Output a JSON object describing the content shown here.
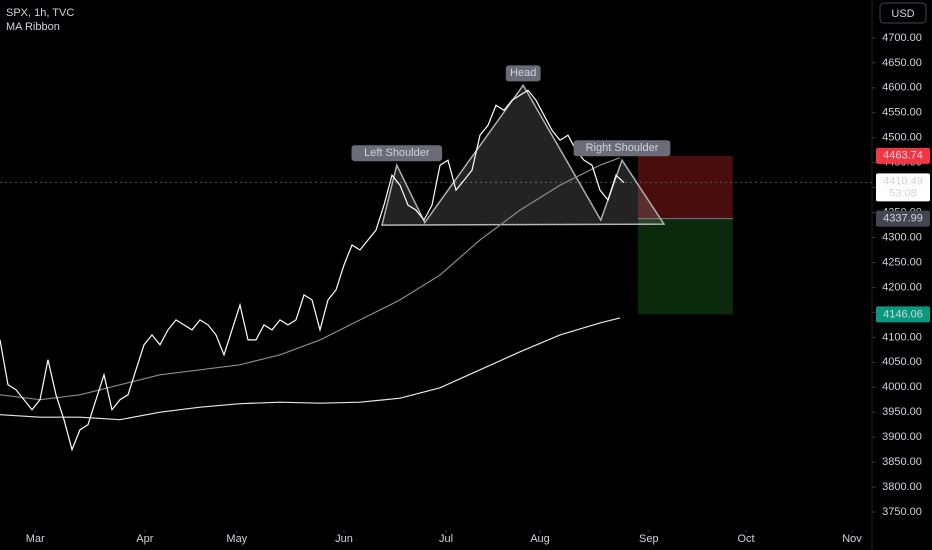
{
  "chart_data": {
    "type": "line",
    "title": "SPX, 1h, TVC",
    "subtitle": "MA Ribbon",
    "currency": "USD",
    "xlim": [
      0,
      109
    ],
    "ylim": [
      3714,
      4776
    ],
    "xticks": [
      {
        "value": 4.4,
        "label": "Mar"
      },
      {
        "value": 18.1,
        "label": "Apr"
      },
      {
        "value": 29.6,
        "label": "May"
      },
      {
        "value": 43,
        "label": "Jun"
      },
      {
        "value": 55.75,
        "label": "Jul"
      },
      {
        "value": 67.5,
        "label": "Aug"
      },
      {
        "value": 81.1,
        "label": "Sep"
      },
      {
        "value": 93.25,
        "label": "Oct"
      },
      {
        "value": 106.5,
        "label": "Nov"
      }
    ],
    "yticks": [
      {
        "value": 3750,
        "label": "3750.00"
      },
      {
        "value": 3800,
        "label": "3800.00"
      },
      {
        "value": 3850,
        "label": "3850.00"
      },
      {
        "value": 3900,
        "label": "3900.00"
      },
      {
        "value": 3950,
        "label": "3950.00"
      },
      {
        "value": 4000,
        "label": "4000.00"
      },
      {
        "value": 4050,
        "label": "4050.00"
      },
      {
        "value": 4100,
        "label": "4100.00"
      },
      {
        "value": 4150,
        "label": "4150.00"
      },
      {
        "value": 4200,
        "label": "4200.00"
      },
      {
        "value": 4250,
        "label": "4250.00"
      },
      {
        "value": 4300,
        "label": "4300.00"
      },
      {
        "value": 4350,
        "label": "4350.00"
      },
      {
        "value": 4400,
        "label": "4400.00"
      },
      {
        "value": 4450,
        "label": "4450.00"
      },
      {
        "value": 4500,
        "label": "4500.00"
      },
      {
        "value": 4550,
        "label": "4550.00"
      },
      {
        "value": 4600,
        "label": "4600.00"
      },
      {
        "value": 4650,
        "label": "4650.00"
      },
      {
        "value": 4700,
        "label": "4700.00"
      }
    ],
    "price": {
      "color": "#ffffff",
      "x": [
        0,
        1,
        2,
        3,
        4,
        5,
        6,
        7,
        8,
        9,
        10,
        11,
        12,
        13,
        14,
        15,
        16,
        17,
        18,
        19,
        20,
        21,
        22,
        23,
        24,
        25,
        26,
        27,
        28,
        29,
        30,
        31,
        32,
        33,
        34,
        35,
        36,
        37,
        38,
        39,
        40,
        41,
        42,
        43,
        44,
        45,
        46,
        47,
        48,
        49,
        50,
        51,
        52,
        53,
        54,
        55,
        56,
        57,
        58,
        59,
        60,
        61,
        62,
        63,
        64,
        65,
        66,
        67,
        68,
        69,
        70,
        71,
        72,
        73,
        74,
        75,
        76,
        77,
        78
      ],
      "values": [
        4095,
        4005,
        3995,
        3975,
        3955,
        3975,
        4055,
        3985,
        3935,
        3875,
        3915,
        3925,
        3975,
        4025,
        3955,
        3975,
        3985,
        4035,
        4085,
        4105,
        4085,
        4115,
        4135,
        4125,
        4115,
        4135,
        4125,
        4105,
        4065,
        4115,
        4165,
        4095,
        4095,
        4125,
        4115,
        4135,
        4125,
        4135,
        4185,
        4175,
        4115,
        4175,
        4195,
        4245,
        4285,
        4275,
        4295,
        4315,
        4365,
        4425,
        4405,
        4365,
        4355,
        4335,
        4365,
        4445,
        4455,
        4395,
        4415,
        4435,
        4505,
        4525,
        4565,
        4555,
        4575,
        4585,
        4595,
        4575,
        4545,
        4515,
        4495,
        4505,
        4475,
        4455,
        4445,
        4395,
        4375,
        4425,
        4410
      ]
    },
    "series": [
      {
        "color": "#e8e8e8",
        "x": [
          0,
          5,
          10,
          15,
          20,
          25,
          30,
          35,
          40,
          45,
          50,
          55,
          60,
          65,
          70,
          75,
          77.5
        ],
        "values": [
          3945,
          3940,
          3940,
          3935,
          3950,
          3960,
          3967,
          3970,
          3968,
          3970,
          3978,
          3999,
          4035,
          4071,
          4105,
          4129,
          4139
        ]
      },
      {
        "color": "#8a8a8a",
        "x": [
          0,
          5,
          10,
          15,
          20,
          25,
          30,
          35,
          40,
          45,
          50,
          55,
          60,
          65,
          70,
          75,
          77.5
        ],
        "values": [
          3985,
          3975,
          3985,
          4005,
          4025,
          4035,
          4045,
          4065,
          4095,
          4135,
          4175,
          4225,
          4295,
          4355,
          4405,
          4445,
          4460
        ]
      }
    ],
    "pattern": {
      "x": [
        47.75,
        49.6,
        53.1,
        65.4,
        75.1,
        77.75,
        83
      ],
      "values": [
        4325,
        4445,
        4330,
        4605,
        4335,
        4455,
        4327
      ]
    },
    "annotations": [
      {
        "text": "Left Shoulder",
        "x": 49.6,
        "y": 4445
      },
      {
        "text": "Head",
        "x": 65.4,
        "y": 4605
      },
      {
        "text": "Right Shoulder",
        "x": 77.75,
        "y": 4455
      }
    ],
    "position": {
      "x": [
        79.75,
        91.6
      ],
      "stop": 4463.74,
      "entry": 4337.99,
      "target": 4146.06
    },
    "last_price": 4410.49,
    "countdown": "53:08"
  }
}
